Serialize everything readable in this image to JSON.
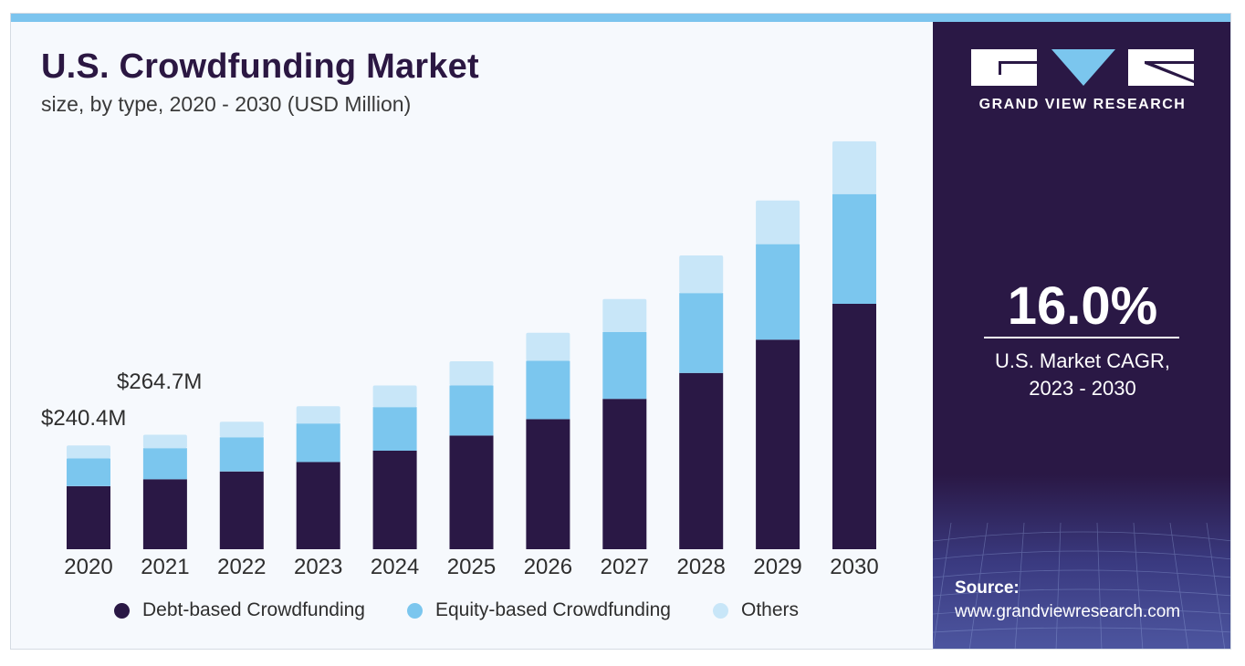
{
  "header": {
    "title": "U.S. Crowdfunding Market",
    "subtitle": "size, by type, 2020 - 2030 (USD Million)"
  },
  "annotations": [
    "$240.4M",
    "$264.7M"
  ],
  "legend": [
    {
      "label": "Debt-based Crowdfunding",
      "color": "#2a1845"
    },
    {
      "label": "Equity-based Crowdfunding",
      "color": "#7bc6ee"
    },
    {
      "label": "Others",
      "color": "#c8e6f8"
    }
  ],
  "panel": {
    "brand": "GRAND VIEW RESEARCH",
    "cagr_value": "16.0%",
    "cagr_label_1": "U.S. Market CAGR,",
    "cagr_label_2": "2023 - 2030",
    "source_label": "Source:",
    "source_url": "www.grandviewresearch.com"
  },
  "chart_data": {
    "type": "bar",
    "stacked": true,
    "categories": [
      "2020",
      "2021",
      "2022",
      "2023",
      "2024",
      "2025",
      "2026",
      "2027",
      "2028",
      "2029",
      "2030"
    ],
    "series": [
      {
        "name": "Debt-based Crowdfunding",
        "color": "#2a1845",
        "values": [
          146,
          162,
          180,
          202,
          228,
          263,
          301,
          348,
          408,
          485,
          568
        ]
      },
      {
        "name": "Equity-based Crowdfunding",
        "color": "#7bc6ee",
        "values": [
          64,
          72,
          79,
          89,
          101,
          116,
          135,
          155,
          185,
          221,
          254
        ]
      },
      {
        "name": "Others",
        "color": "#c8e6f8",
        "values": [
          30,
          31,
          36,
          40,
          50,
          56,
          65,
          76,
          87,
          101,
          122
        ]
      }
    ],
    "data_labels": [
      {
        "category": "2020",
        "text": "$240.4M",
        "value": 240.4
      },
      {
        "category": "2021",
        "text": "$264.7M",
        "value": 264.7
      }
    ],
    "title": "U.S. Crowdfunding Market",
    "subtitle": "size, by type, 2020 - 2030 (USD Million)",
    "legend_position": "bottom",
    "grid": false
  }
}
